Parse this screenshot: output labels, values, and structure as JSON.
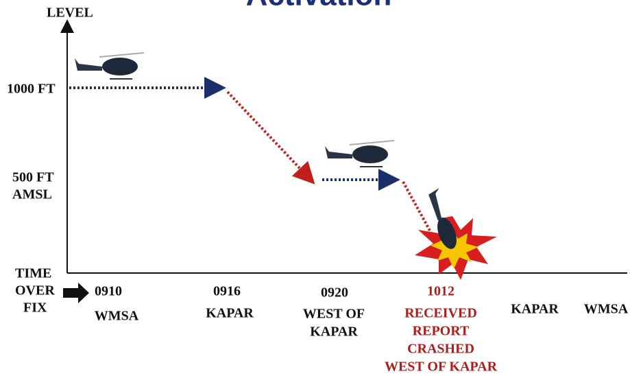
{
  "title": "Activation",
  "y_axis": {
    "label": "LEVEL",
    "levels": [
      [
        "1000 FT"
      ],
      [
        "500 FT",
        "AMSL"
      ]
    ]
  },
  "x_axis": {
    "label": [
      "TIME",
      "OVER",
      "FIX"
    ],
    "fixes": [
      {
        "time": "0910",
        "place": [
          "WMSA"
        ]
      },
      {
        "time": "0916",
        "place": [
          "KAPAR"
        ]
      },
      {
        "time": "0920",
        "place": [
          "WEST OF",
          "KAPAR"
        ]
      },
      {
        "time": "1012",
        "place": [
          "RECEIVED",
          "REPORT",
          "CRASHED",
          "WEST OF KAPAR"
        ]
      },
      {
        "place": [
          "KAPAR"
        ]
      },
      {
        "place": [
          "WMSA"
        ]
      }
    ]
  }
}
